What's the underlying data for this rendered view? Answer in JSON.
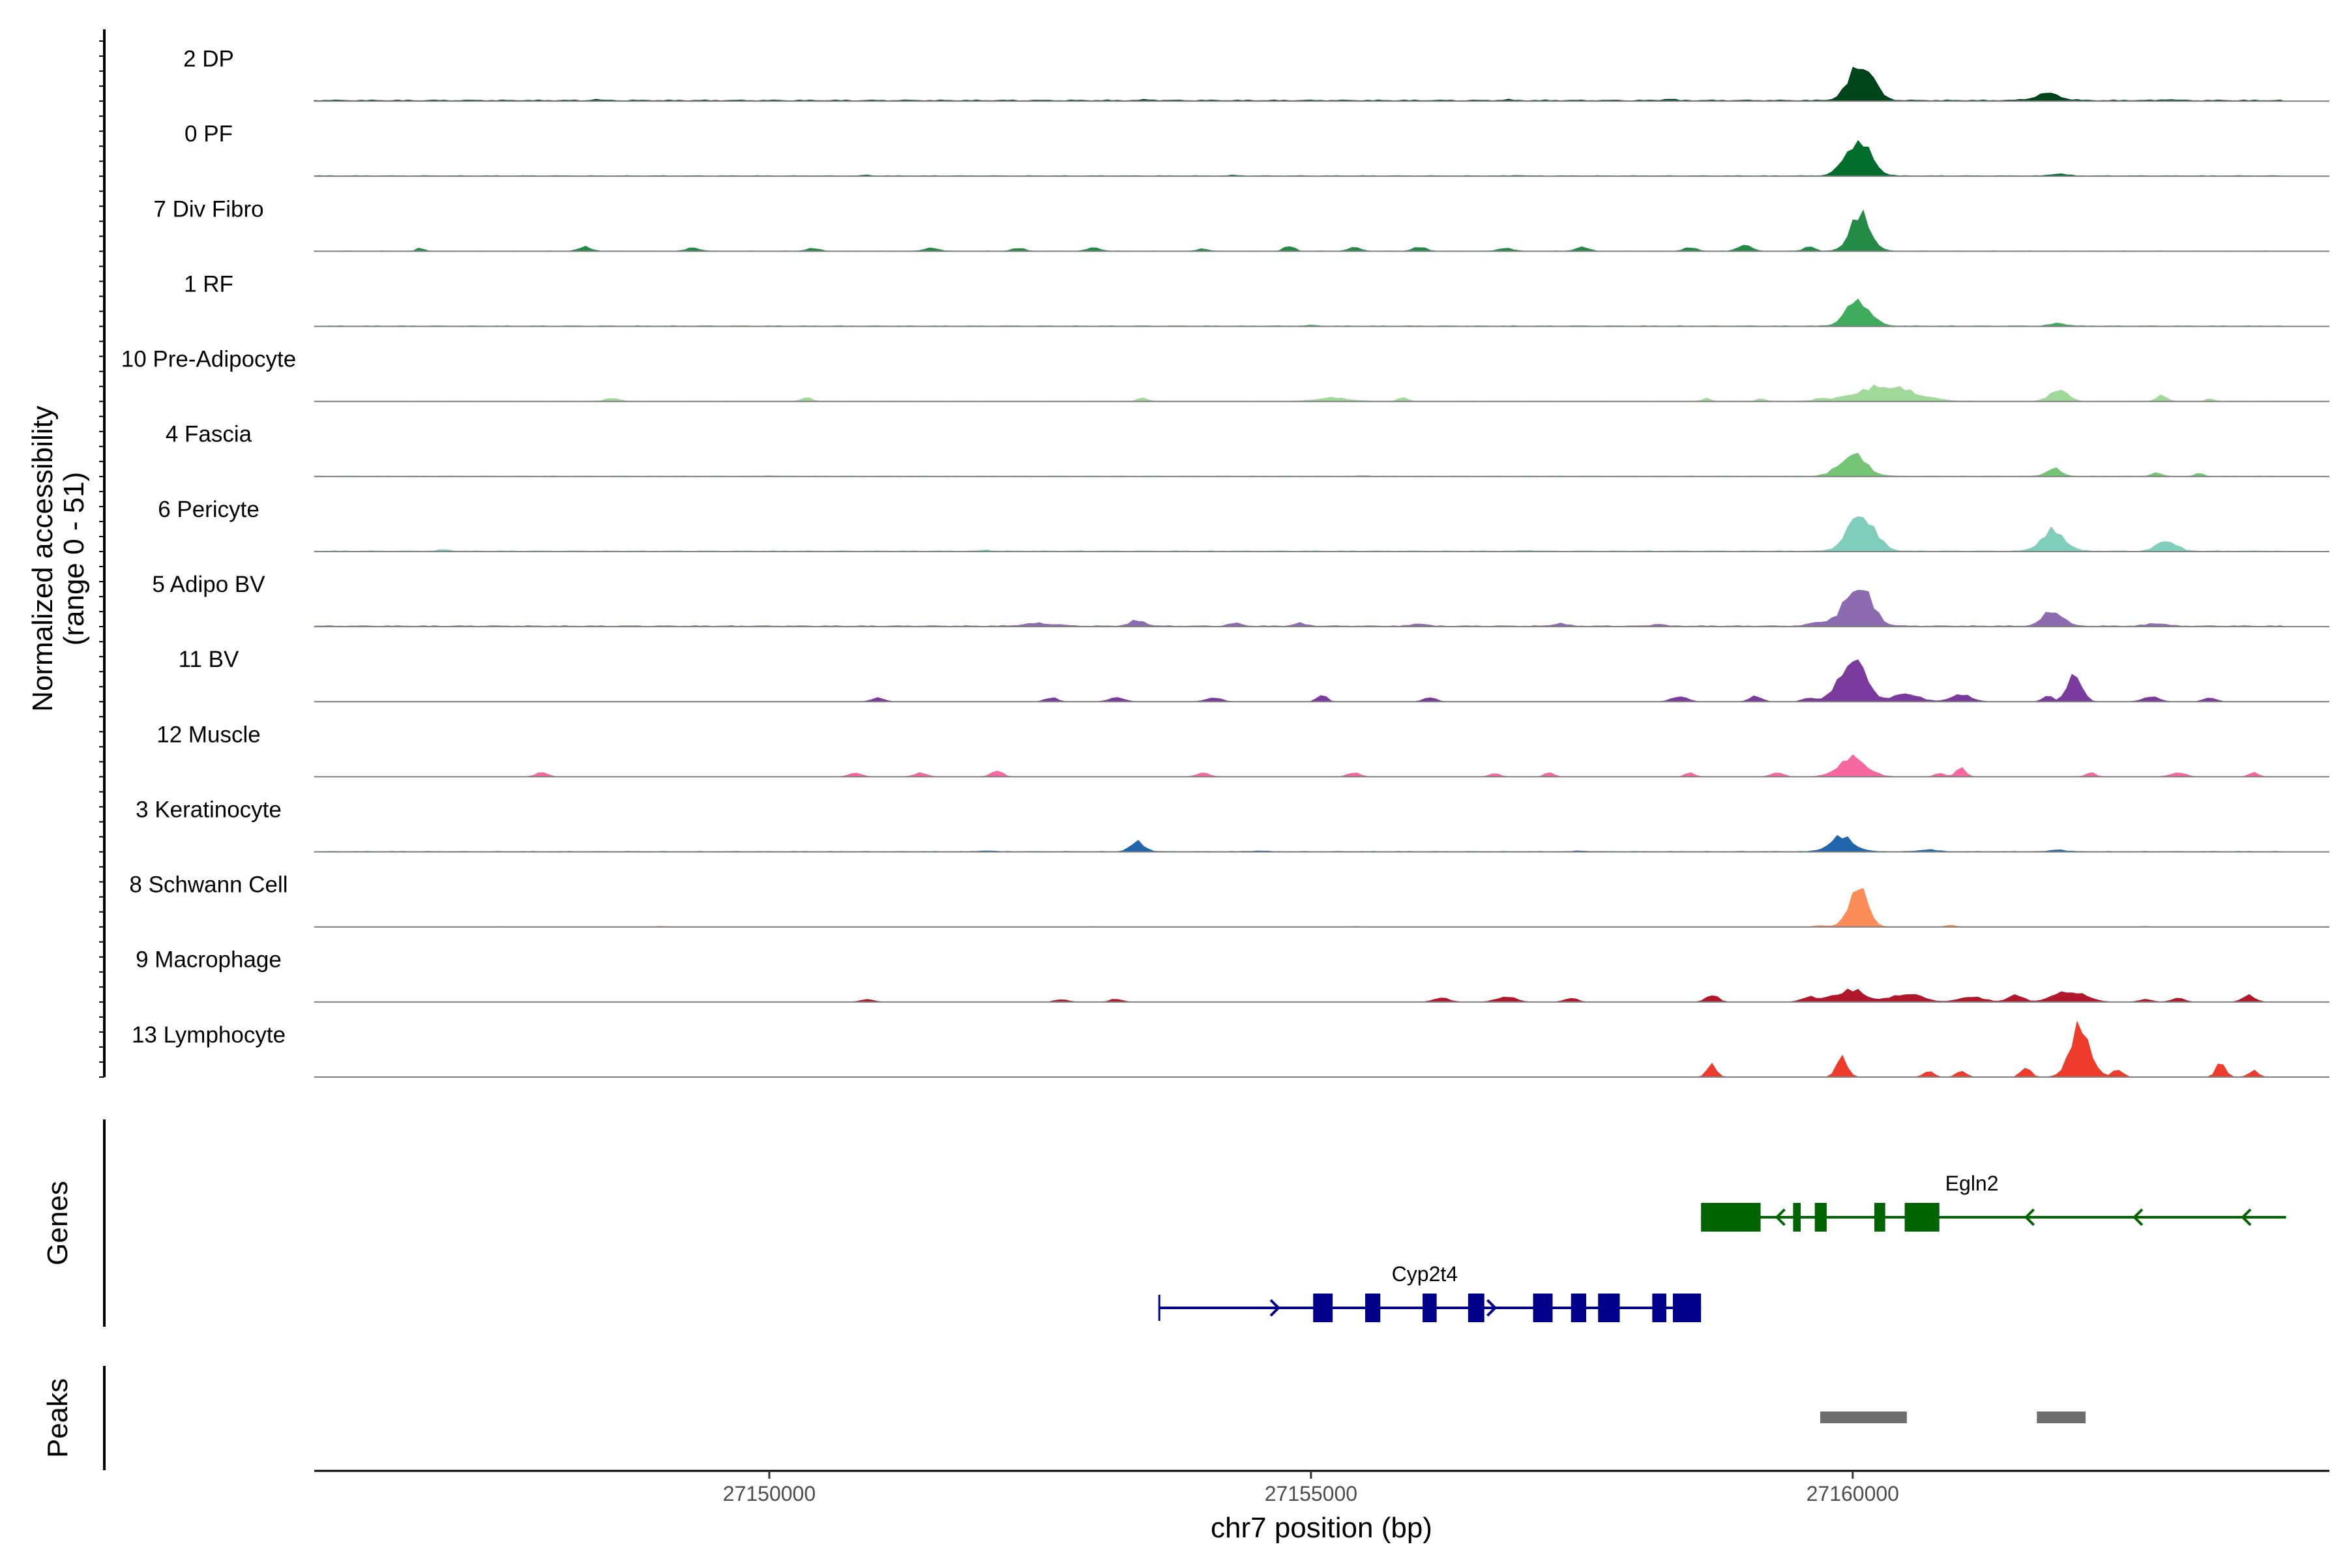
{
  "chart_data": {
    "type": "area",
    "xlabel": "chr7 position (bp)",
    "ylabel": "Normalized accessibility",
    "ylabel_sub": "(range 0 - 51)",
    "y_range": [
      0,
      51
    ],
    "xlim": [
      27145800,
      27164400
    ],
    "x_ticks": [
      27150000,
      27155000,
      27160000
    ],
    "x_tick_labels": [
      "27150000",
      "27155000",
      "27160000"
    ],
    "tracks": [
      {
        "label": "2 DP",
        "color": "#00441b",
        "baseline": 1.0,
        "peaks": [
          [
            27148390,
            0.7,
            50
          ],
          [
            27153500,
            0.6,
            60
          ],
          [
            27156800,
            0.6,
            50
          ],
          [
            27158300,
            1.2,
            60
          ],
          [
            27160080,
            28,
            150
          ],
          [
            27161800,
            5,
            160
          ],
          [
            27162900,
            0.7,
            80
          ]
        ]
      },
      {
        "label": "0 PF",
        "color": "#006d2c",
        "baseline": 0.5,
        "peaks": [
          [
            27150900,
            0.6,
            40
          ],
          [
            27154300,
            0.5,
            50
          ],
          [
            27156900,
            0.5,
            50
          ],
          [
            27160050,
            26,
            160
          ],
          [
            27161900,
            1.5,
            100
          ]
        ]
      },
      {
        "label": "7 Div Fibro",
        "color": "#238b45",
        "baseline": 0.3,
        "peaks": [
          [
            27146780,
            2,
            50
          ],
          [
            27148300,
            3,
            80
          ],
          [
            27149300,
            2.5,
            80
          ],
          [
            27150400,
            2,
            80
          ],
          [
            27151500,
            2.5,
            80
          ],
          [
            27152300,
            2,
            80
          ],
          [
            27153000,
            2.5,
            80
          ],
          [
            27154000,
            2,
            60
          ],
          [
            27154800,
            4,
            60
          ],
          [
            27155400,
            2.5,
            80
          ],
          [
            27156000,
            3,
            80
          ],
          [
            27156800,
            2.5,
            80
          ],
          [
            27157500,
            3,
            80
          ],
          [
            27158500,
            2.5,
            80
          ],
          [
            27159000,
            5,
            80
          ],
          [
            27159600,
            4,
            60
          ],
          [
            27160070,
            27,
            130
          ]
        ]
      },
      {
        "label": "1 RF",
        "color": "#41ab5d",
        "baseline": 0.5,
        "peaks": [
          [
            27155000,
            0.5,
            60
          ],
          [
            27160050,
            19,
            150
          ],
          [
            27161900,
            2,
            100
          ]
        ]
      },
      {
        "label": "10 Pre-Adipocyte",
        "color": "#a1d99b",
        "baseline": 0.3,
        "peaks": [
          [
            27148550,
            2.5,
            80
          ],
          [
            27150350,
            3,
            60
          ],
          [
            27153450,
            2.5,
            60
          ],
          [
            27155200,
            2.5,
            200
          ],
          [
            27155850,
            2.5,
            60
          ],
          [
            27158650,
            2,
            50
          ],
          [
            27159150,
            2,
            50
          ],
          [
            27159700,
            2,
            60
          ],
          [
            27160300,
            11,
            360
          ],
          [
            27161900,
            9,
            110
          ],
          [
            27162850,
            5,
            60
          ],
          [
            27163300,
            2,
            40
          ]
        ]
      },
      {
        "label": "4 Fascia",
        "color": "#74c476",
        "baseline": 0.4,
        "peaks": [
          [
            27150000,
            0.4,
            60
          ],
          [
            27155500,
            0.4,
            60
          ],
          [
            27160000,
            16,
            170
          ],
          [
            27161850,
            6,
            90
          ],
          [
            27162800,
            2.5,
            60
          ],
          [
            27163200,
            2,
            50
          ]
        ]
      },
      {
        "label": "6 Pericyte",
        "color": "#7fcdbb",
        "baseline": 0.6,
        "peaks": [
          [
            27147000,
            1,
            80
          ],
          [
            27152000,
            0.8,
            60
          ],
          [
            27157000,
            0.8,
            60
          ],
          [
            27160080,
            27,
            170
          ],
          [
            27161850,
            15,
            150
          ],
          [
            27162900,
            8,
            120
          ]
        ]
      },
      {
        "label": "5 Adipo BV",
        "color": "#8c6bb1",
        "baseline": 0.8,
        "peaks": [
          [
            27152500,
            2,
            200
          ],
          [
            27153400,
            4,
            100
          ],
          [
            27154300,
            2,
            80
          ],
          [
            27154900,
            2,
            80
          ],
          [
            27156000,
            2,
            80
          ],
          [
            27157300,
            2,
            80
          ],
          [
            27158200,
            2,
            60
          ],
          [
            27159700,
            3,
            120
          ],
          [
            27160050,
            30,
            170
          ],
          [
            27161850,
            12,
            120
          ],
          [
            27162800,
            2,
            120
          ]
        ]
      },
      {
        "label": "11 BV",
        "color": "#7a3a9e",
        "baseline": 0,
        "peaks": [
          [
            27151000,
            3,
            80
          ],
          [
            27152600,
            3,
            80
          ],
          [
            27153200,
            3,
            100
          ],
          [
            27154100,
            3,
            100
          ],
          [
            27155100,
            5,
            60
          ],
          [
            27156100,
            3,
            80
          ],
          [
            27158400,
            4,
            100
          ],
          [
            27159100,
            4,
            80
          ],
          [
            27159600,
            3,
            80
          ],
          [
            27160000,
            31,
            170
          ],
          [
            27160500,
            6,
            160
          ],
          [
            27161000,
            5,
            140
          ],
          [
            27161800,
            5,
            60
          ],
          [
            27162050,
            21,
            90
          ],
          [
            27162750,
            4,
            100
          ],
          [
            27163300,
            3,
            80
          ]
        ]
      },
      {
        "label": "12 Muscle",
        "color": "#f768a1",
        "baseline": 0,
        "peaks": [
          [
            27147900,
            3,
            80
          ],
          [
            27150800,
            3,
            80
          ],
          [
            27151400,
            3,
            80
          ],
          [
            27152100,
            5,
            70
          ],
          [
            27154000,
            3,
            80
          ],
          [
            27155400,
            3,
            80
          ],
          [
            27156700,
            3,
            60
          ],
          [
            27157200,
            3,
            60
          ],
          [
            27158500,
            3,
            60
          ],
          [
            27159300,
            3,
            80
          ],
          [
            27160000,
            14,
            180
          ],
          [
            27160800,
            3,
            60
          ],
          [
            27161000,
            7,
            60
          ],
          [
            27162200,
            3,
            60
          ],
          [
            27163000,
            3,
            100
          ],
          [
            27163700,
            3,
            60
          ]
        ]
      },
      {
        "label": "3 Keratinocyte",
        "color": "#2166ac",
        "baseline": 0.4,
        "peaks": [
          [
            27152000,
            0.6,
            80
          ],
          [
            27153400,
            7,
            90
          ],
          [
            27154500,
            0.5,
            100
          ],
          [
            27157500,
            0.5,
            80
          ],
          [
            27159900,
            11,
            150
          ],
          [
            27160700,
            1.5,
            100
          ],
          [
            27161900,
            1.5,
            80
          ]
        ]
      },
      {
        "label": "8 Schwann Cell",
        "color": "#fc8d59",
        "baseline": 0,
        "peaks": [
          [
            27147500,
            0.3,
            60
          ],
          [
            27149000,
            0.5,
            60
          ],
          [
            27153000,
            0.3,
            60
          ],
          [
            27155400,
            0.4,
            60
          ],
          [
            27159700,
            1,
            80
          ],
          [
            27160050,
            29,
            120
          ],
          [
            27160900,
            1.5,
            60
          ],
          [
            27162700,
            0.5,
            60
          ]
        ]
      },
      {
        "label": "9 Macrophage",
        "color": "#b2182b",
        "baseline": 0,
        "peaks": [
          [
            27150900,
            2,
            80
          ],
          [
            27152700,
            2,
            80
          ],
          [
            27153200,
            2,
            80
          ],
          [
            27156200,
            3,
            100
          ],
          [
            27156800,
            4,
            120
          ],
          [
            27157400,
            3,
            80
          ],
          [
            27158700,
            5,
            80
          ],
          [
            27159600,
            4,
            100
          ],
          [
            27159800,
            3,
            80
          ],
          [
            27160000,
            9,
            160
          ],
          [
            27160500,
            6,
            200
          ],
          [
            27161100,
            4,
            150
          ],
          [
            27161500,
            5,
            100
          ],
          [
            27162000,
            8,
            200
          ],
          [
            27162700,
            2,
            80
          ],
          [
            27163000,
            3,
            80
          ],
          [
            27163650,
            5,
            80
          ]
        ]
      },
      {
        "label": "13 Lymphocyte",
        "color": "#ef3b2c",
        "baseline": 0,
        "peaks": [
          [
            27158700,
            9,
            60
          ],
          [
            27159900,
            14,
            70
          ],
          [
            27160700,
            5,
            60
          ],
          [
            27161000,
            5,
            60
          ],
          [
            27161600,
            8,
            60
          ],
          [
            27162100,
            36,
            130
          ],
          [
            27162450,
            6,
            60
          ],
          [
            27163400,
            11,
            60
          ],
          [
            27163700,
            5,
            60
          ]
        ]
      }
    ],
    "genes": [
      {
        "name": "Egln2",
        "strand": "-",
        "color": "#006400",
        "start": 27158600,
        "end": 27164000,
        "exons": [
          [
            27158600,
            27159150
          ],
          [
            27159450,
            27159520
          ],
          [
            27159650,
            27159760
          ],
          [
            27160200,
            27160300
          ],
          [
            27160480,
            27160800
          ]
        ],
        "arrows": [
          27159300,
          27161600,
          27162600,
          27163600
        ]
      },
      {
        "name": "Cyp2t4",
        "strand": "+",
        "color": "#00008b",
        "start": 27153600,
        "end": 27158600,
        "exons": [
          [
            27155020,
            27155200
          ],
          [
            27155500,
            27155640
          ],
          [
            27156030,
            27156160
          ],
          [
            27156450,
            27156600
          ],
          [
            27157050,
            27157230
          ],
          [
            27157400,
            27157540
          ],
          [
            27157650,
            27157850
          ],
          [
            27158150,
            27158280
          ],
          [
            27158340,
            27158600
          ]
        ],
        "arrows": [
          27154700,
          27156700,
          27157800
        ]
      }
    ],
    "peaks_track": [
      [
        27159700,
        27160500
      ],
      [
        27161700,
        27162150
      ]
    ],
    "track_titles": {
      "genes": "Genes",
      "peaks": "Peaks"
    }
  }
}
